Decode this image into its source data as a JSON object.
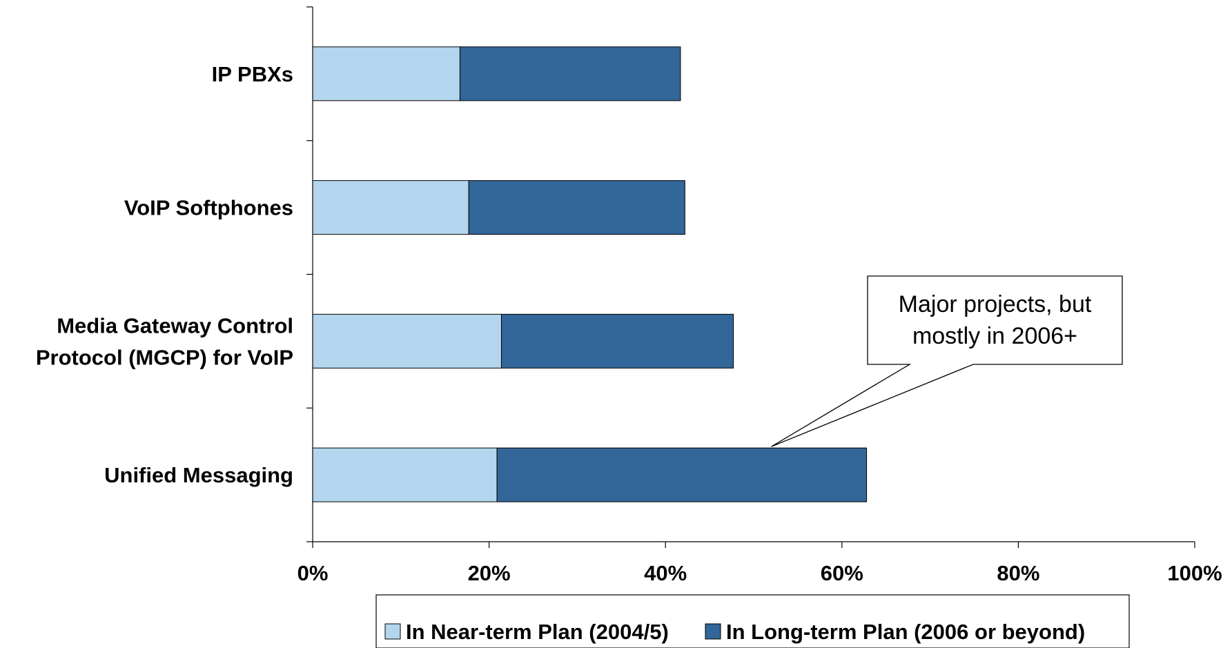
{
  "chart_data": {
    "type": "bar",
    "orientation": "horizontal",
    "stacked": true,
    "categories": [
      [
        "IP PBXs"
      ],
      [
        "VoIP Softphones"
      ],
      [
        "Media Gateway Control",
        "Protocol (MGCP) for VoIP"
      ],
      [
        "Unified Messaging"
      ]
    ],
    "series": [
      {
        "name": "In Near-term Plan (2004/5)",
        "color": "#b3d6ee",
        "values": [
          16.7,
          17.7,
          21.4,
          20.9
        ]
      },
      {
        "name": "In Long-term Plan (2006 or beyond)",
        "color": "#336699",
        "values": [
          25.0,
          24.5,
          26.3,
          41.9
        ]
      }
    ],
    "xlim": [
      0,
      100
    ],
    "xticks": [
      0,
      20,
      40,
      60,
      80,
      100
    ],
    "tick_suffix": "%",
    "grid": false,
    "legend_position": "bottom",
    "annotation": {
      "lines": [
        "Major projects, but",
        "mostly in 2006+"
      ],
      "points_to_category": 3,
      "points_to_value": 52
    }
  }
}
